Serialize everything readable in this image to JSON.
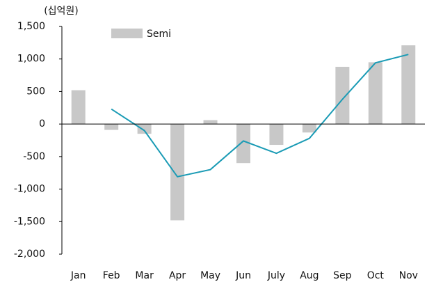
{
  "chart_data": {
    "type": "bar_line",
    "unit_label": "(십억원)",
    "categories": [
      "Jan",
      "Feb",
      "Mar",
      "Apr",
      "May",
      "Jun",
      "July",
      "Aug",
      "Sep",
      "Oct",
      "Nov"
    ],
    "series": [
      {
        "name": "Semi",
        "type": "bar",
        "color": "#c8c8c8",
        "values": [
          520,
          -90,
          -150,
          -1480,
          60,
          -600,
          -320,
          -130,
          880,
          950,
          1210
        ]
      },
      {
        "type": "line",
        "color": "#1a9bb5",
        "values": [
          null,
          230,
          -100,
          -810,
          -700,
          -260,
          -450,
          -220,
          380,
          940,
          1070
        ]
      }
    ],
    "ylim": [
      -2000,
      1500
    ],
    "yticks": [
      {
        "value": -2000,
        "label": "-2,000"
      },
      {
        "value": -1500,
        "label": "-1,500"
      },
      {
        "value": -1000,
        "label": "-1,000"
      },
      -500,
      0,
      500,
      {
        "value": 1000,
        "label": "1,000"
      },
      {
        "value": 1500,
        "label": "1,500"
      }
    ],
    "legend": "top-left"
  }
}
